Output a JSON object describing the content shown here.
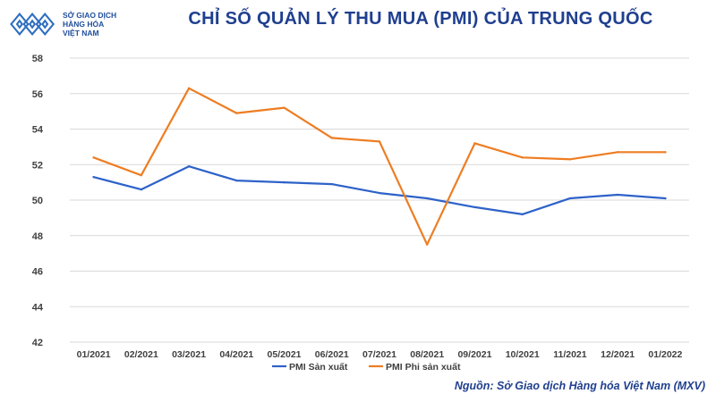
{
  "header": {
    "logo_line1": "SỞ GIAO DỊCH",
    "logo_line2": "HÀNG HÓA",
    "logo_line3": "VIỆT NAM",
    "title": "CHỈ SỐ QUẢN LÝ THU MUA (PMI) CỦA TRUNG QUỐC"
  },
  "footer": {
    "source": "Nguồn: Sở Giao dịch Hàng hóa Việt Nam (MXV)"
  },
  "colors": {
    "series1": "#2e62c9",
    "series2": "#ee7d22",
    "grid": "#d9d9d9",
    "title": "#1f3f8f"
  },
  "chart_data": {
    "type": "line",
    "title": "CHỈ SỐ QUẢN LÝ THU MUA (PMI) CỦA TRUNG QUỐC",
    "xlabel": "",
    "ylabel": "",
    "categories": [
      "01/2021",
      "02/2021",
      "03/2021",
      "04/2021",
      "05/2021",
      "06/2021",
      "07/2021",
      "08/2021",
      "09/2021",
      "10/2021",
      "11/2021",
      "12/2021",
      "01/2022"
    ],
    "ylim": [
      42,
      58
    ],
    "yticks": [
      42,
      44,
      46,
      48,
      50,
      52,
      54,
      56,
      58
    ],
    "grid": true,
    "legend_position": "bottom",
    "series": [
      {
        "name": "PMI Sản xuất",
        "values": [
          51.3,
          50.6,
          51.9,
          51.1,
          51.0,
          50.9,
          50.4,
          50.1,
          49.6,
          49.2,
          50.1,
          50.3,
          50.1
        ]
      },
      {
        "name": "PMI Phi sản xuất",
        "values": [
          52.4,
          51.4,
          56.3,
          54.9,
          55.2,
          53.5,
          53.3,
          47.5,
          53.2,
          52.4,
          52.3,
          52.7,
          52.7
        ]
      }
    ]
  }
}
